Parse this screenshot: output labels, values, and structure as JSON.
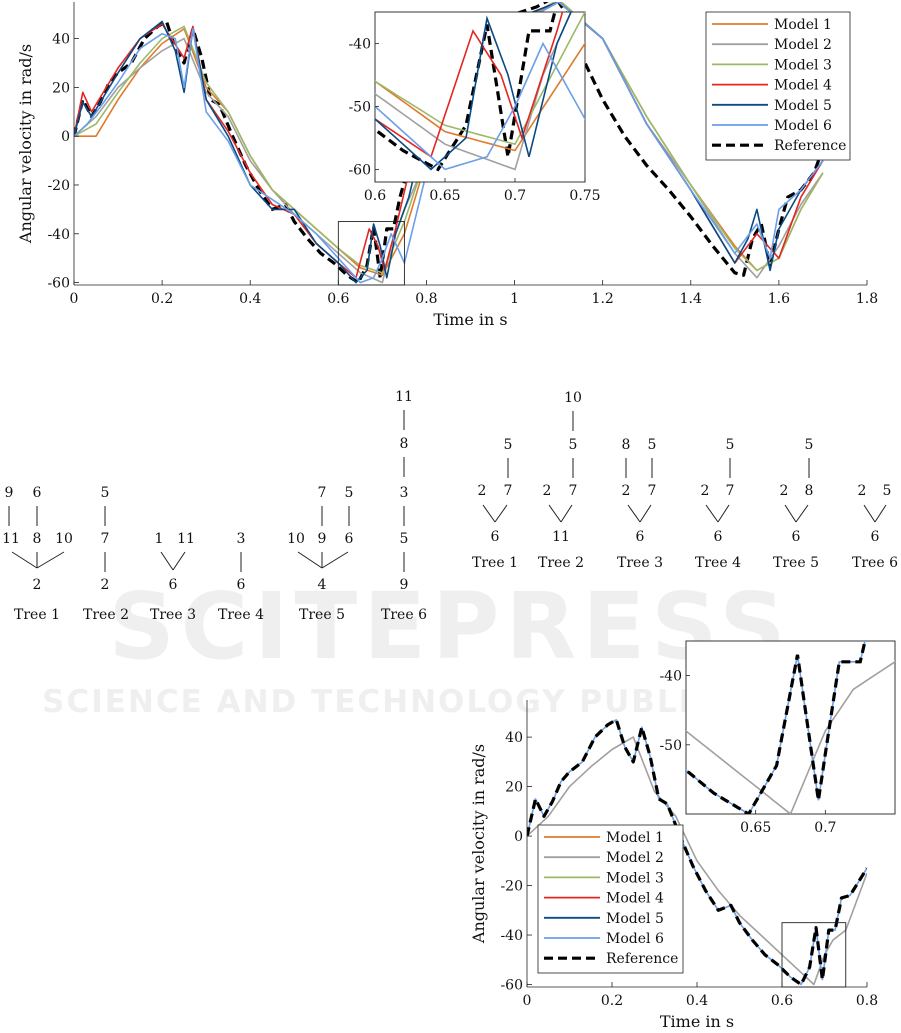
{
  "watermark": {
    "title": "SCITEPRESS",
    "subtitle": "SCIENCE AND TECHNOLOGY PUBLICATIONS"
  },
  "colors": {
    "Model 1": "#e07b2c",
    "Model 2": "#a0a0a0",
    "Model 3": "#9cb96a",
    "Model 4": "#e52521",
    "Model 5": "#0a4a84",
    "Model 6": "#6b9fe8",
    "Reference": "#000000"
  },
  "chart_data": [
    {
      "id": "top",
      "type": "line",
      "xlabel": "Time in s",
      "ylabel": "Angular velocity in rad/s",
      "xlim": [
        0,
        1.8
      ],
      "ylim": [
        -61,
        55
      ],
      "xticks": [
        "0",
        "0.2",
        "0.4",
        "0.6",
        "0.8",
        "1",
        "1.2",
        "1.4",
        "1.6",
        "1.8"
      ],
      "yticks": [
        "-60",
        "-40",
        "-20",
        "0",
        "20",
        "40"
      ],
      "legend_position": "top-right",
      "legend": [
        "Model 1",
        "Model 2",
        "Model 3",
        "Model 4",
        "Model 5",
        "Model 6",
        "Reference"
      ],
      "inset": {
        "xlim": [
          0.6,
          0.75
        ],
        "ylim": [
          -62,
          -35
        ],
        "xticks": [
          "0.6",
          "0.65",
          "0.7",
          "0.75"
        ],
        "yticks": [
          "-60",
          "-50",
          "-40"
        ]
      },
      "series": [
        {
          "name": "Reference",
          "x": [
            0,
            0.02,
            0.04,
            0.06,
            0.08,
            0.1,
            0.13,
            0.16,
            0.19,
            0.21,
            0.23,
            0.25,
            0.27,
            0.29,
            0.31,
            0.33,
            0.36,
            0.39,
            0.42,
            0.45,
            0.48,
            0.5,
            0.53,
            0.56,
            0.59,
            0.62,
            0.645,
            0.665,
            0.68,
            0.695,
            0.71,
            0.725,
            0.74,
            0.76,
            0.8,
            0.85,
            0.9,
            0.95,
            1.0,
            1.05,
            1.08,
            1.1,
            1.13,
            1.16,
            1.2,
            1.25,
            1.3,
            1.35,
            1.4,
            1.45,
            1.5,
            1.52,
            1.54,
            1.56,
            1.58,
            1.6,
            1.62,
            1.65,
            1.68,
            1.7
          ],
          "y": [
            0,
            15,
            8,
            14,
            22,
            26,
            30,
            40,
            45,
            47,
            36,
            30,
            44,
            32,
            15,
            13,
            0,
            -12,
            -22,
            -30,
            -28,
            -35,
            -42,
            -48,
            -52,
            -57,
            -60,
            -53,
            -37,
            -58,
            -38,
            -38,
            -25,
            -12,
            5,
            20,
            33,
            45,
            50,
            53,
            56,
            55,
            47,
            30,
            15,
            0,
            -12,
            -22,
            -33,
            -45,
            -56,
            -57,
            -42,
            -36,
            -53,
            -38,
            -25,
            -22,
            -15,
            -5
          ]
        },
        {
          "name": "Model 1",
          "x": [
            0,
            0.05,
            0.1,
            0.15,
            0.2,
            0.25,
            0.3,
            0.35,
            0.4,
            0.45,
            0.5,
            0.55,
            0.6,
            0.65,
            0.7,
            0.75,
            0.8,
            0.9,
            1.0,
            1.1,
            1.2,
            1.3,
            1.4,
            1.5,
            1.55,
            1.6,
            1.65,
            1.7
          ],
          "y": [
            0,
            0,
            15,
            28,
            38,
            44,
            20,
            10,
            -8,
            -22,
            -30,
            -38,
            -46,
            -54,
            -57,
            -40,
            -10,
            20,
            45,
            56,
            40,
            8,
            -20,
            -45,
            -55,
            -50,
            -30,
            -15
          ]
        },
        {
          "name": "Model 2",
          "x": [
            0,
            0.05,
            0.1,
            0.15,
            0.2,
            0.25,
            0.3,
            0.35,
            0.4,
            0.45,
            0.5,
            0.55,
            0.6,
            0.65,
            0.7,
            0.72,
            0.75,
            0.8,
            0.9,
            1.0,
            1.1,
            1.2,
            1.3,
            1.4,
            1.5,
            1.55,
            1.6,
            1.65,
            1.7
          ],
          "y": [
            0,
            8,
            20,
            28,
            35,
            40,
            18,
            8,
            -10,
            -22,
            -32,
            -40,
            -48,
            -56,
            -60,
            -45,
            -30,
            -10,
            20,
            45,
            55,
            40,
            5,
            -20,
            -48,
            -58,
            -45,
            -28,
            -15
          ]
        },
        {
          "name": "Model 3",
          "x": [
            0,
            0.05,
            0.1,
            0.15,
            0.2,
            0.25,
            0.3,
            0.35,
            0.4,
            0.45,
            0.5,
            0.55,
            0.6,
            0.65,
            0.7,
            0.75,
            0.8,
            0.9,
            1.0,
            1.1,
            1.2,
            1.3,
            1.4,
            1.5,
            1.55,
            1.6,
            1.65,
            1.7
          ],
          "y": [
            0,
            5,
            18,
            30,
            40,
            45,
            22,
            10,
            -8,
            -22,
            -30,
            -38,
            -46,
            -53,
            -56,
            -35,
            -8,
            22,
            46,
            56,
            40,
            8,
            -20,
            -46,
            -55,
            -50,
            -30,
            -15
          ]
        },
        {
          "name": "Model 4",
          "x": [
            0,
            0.02,
            0.04,
            0.06,
            0.1,
            0.15,
            0.2,
            0.25,
            0.27,
            0.3,
            0.35,
            0.4,
            0.45,
            0.5,
            0.55,
            0.6,
            0.64,
            0.67,
            0.69,
            0.705,
            0.73,
            0.76,
            0.8,
            0.9,
            1.0,
            1.1,
            1.2,
            1.3,
            1.4,
            1.5,
            1.55,
            1.6,
            1.65,
            1.7
          ],
          "y": [
            0,
            18,
            10,
            16,
            28,
            40,
            46,
            32,
            45,
            15,
            2,
            -15,
            -28,
            -32,
            -44,
            -52,
            -58,
            -38,
            -45,
            -55,
            -38,
            -15,
            5,
            30,
            48,
            55,
            40,
            5,
            -22,
            -52,
            -40,
            -50,
            -25,
            -10
          ]
        },
        {
          "name": "Model 5",
          "x": [
            0,
            0.02,
            0.04,
            0.06,
            0.1,
            0.15,
            0.2,
            0.23,
            0.25,
            0.27,
            0.3,
            0.35,
            0.4,
            0.45,
            0.5,
            0.55,
            0.6,
            0.64,
            0.665,
            0.68,
            0.695,
            0.71,
            0.73,
            0.76,
            0.8,
            0.9,
            1.0,
            1.1,
            1.2,
            1.3,
            1.4,
            1.5,
            1.53,
            1.55,
            1.58,
            1.6,
            1.65,
            1.7
          ],
          "y": [
            0,
            14,
            8,
            14,
            26,
            40,
            47,
            35,
            18,
            44,
            15,
            0,
            -20,
            -30,
            -30,
            -44,
            -52,
            -60,
            -55,
            -36,
            -45,
            -58,
            -40,
            -25,
            5,
            30,
            48,
            55,
            40,
            5,
            -22,
            -52,
            -42,
            -30,
            -55,
            -38,
            -22,
            -10
          ]
        },
        {
          "name": "Model 6",
          "x": [
            0,
            0.03,
            0.06,
            0.1,
            0.15,
            0.2,
            0.23,
            0.25,
            0.27,
            0.3,
            0.35,
            0.4,
            0.45,
            0.5,
            0.55,
            0.6,
            0.65,
            0.68,
            0.7,
            0.72,
            0.75,
            0.8,
            0.9,
            1.0,
            1.1,
            1.2,
            1.3,
            1.4,
            1.5,
            1.55,
            1.58,
            1.6,
            1.65,
            1.7
          ],
          "y": [
            0,
            5,
            12,
            22,
            36,
            42,
            40,
            20,
            44,
            10,
            -2,
            -20,
            -26,
            -32,
            -40,
            -50,
            -60,
            -58,
            -50,
            -40,
            -52,
            -15,
            20,
            45,
            55,
            40,
            5,
            -22,
            -48,
            -36,
            -50,
            -30,
            -22,
            -10
          ]
        }
      ]
    },
    {
      "id": "bottom",
      "type": "line",
      "xlabel": "Time in s",
      "ylabel": "Angular velocity in rad/s",
      "xlim": [
        0,
        0.8
      ],
      "ylim": [
        -61,
        55
      ],
      "xticks": [
        "0",
        "0.2",
        "0.4",
        "0.6",
        "0.8"
      ],
      "yticks": [
        "-60",
        "-40",
        "-20",
        "0",
        "20",
        "40"
      ],
      "legend_position": "bottom-left",
      "legend": [
        "Model 1",
        "Model 2",
        "Model 3",
        "Model 4",
        "Model 5",
        "Model 6",
        "Reference"
      ],
      "inset": {
        "xlim": [
          0.6,
          0.75
        ],
        "ylim": [
          -60,
          -35
        ],
        "xticks": [
          "0.65",
          "0.7"
        ],
        "yticks": [
          "-50",
          "-40"
        ]
      },
      "series": [
        {
          "name": "Model 2",
          "x": [
            0,
            0.05,
            0.1,
            0.15,
            0.2,
            0.25,
            0.3,
            0.35,
            0.4,
            0.45,
            0.5,
            0.55,
            0.6,
            0.65,
            0.675,
            0.7,
            0.72,
            0.75,
            0.8
          ],
          "y": [
            0,
            8,
            20,
            28,
            35,
            40,
            18,
            8,
            -10,
            -22,
            -32,
            -40,
            -48,
            -56,
            -60,
            -48,
            -42,
            -38,
            -15
          ]
        },
        {
          "name": "Model 6",
          "x": [
            0,
            0.02,
            0.04,
            0.06,
            0.08,
            0.1,
            0.13,
            0.16,
            0.19,
            0.21,
            0.23,
            0.25,
            0.27,
            0.29,
            0.31,
            0.33,
            0.36,
            0.39,
            0.42,
            0.45,
            0.48,
            0.5,
            0.53,
            0.56,
            0.59,
            0.62,
            0.645,
            0.665,
            0.68,
            0.695,
            0.71,
            0.725,
            0.74,
            0.76,
            0.8
          ],
          "y": [
            0,
            15,
            8,
            14,
            22,
            26,
            30,
            40,
            45,
            47,
            36,
            30,
            44,
            32,
            15,
            13,
            0,
            -12,
            -22,
            -30,
            -28,
            -35,
            -42,
            -48,
            -52,
            -57,
            -60,
            -53,
            -37,
            -58,
            -38,
            -38,
            -25,
            -24,
            -13
          ]
        },
        {
          "name": "Reference",
          "x": [
            0,
            0.02,
            0.04,
            0.06,
            0.08,
            0.1,
            0.13,
            0.16,
            0.19,
            0.21,
            0.23,
            0.25,
            0.27,
            0.29,
            0.31,
            0.33,
            0.36,
            0.39,
            0.42,
            0.45,
            0.48,
            0.5,
            0.53,
            0.56,
            0.59,
            0.62,
            0.645,
            0.665,
            0.68,
            0.695,
            0.71,
            0.725,
            0.74,
            0.76,
            0.8
          ],
          "y": [
            0,
            15,
            8,
            14,
            22,
            26,
            30,
            40,
            45,
            47,
            36,
            30,
            44,
            32,
            15,
            13,
            0,
            -12,
            -22,
            -30,
            -28,
            -35,
            -42,
            -48,
            -52,
            -57,
            -60,
            -53,
            -37,
            -58,
            -38,
            -38,
            -25,
            -24,
            -13
          ]
        }
      ]
    }
  ],
  "trees": {
    "left": {
      "labels": [
        "Tree 1",
        "Tree 2",
        "Tree 3",
        "Tree 4",
        "Tree 5",
        "Tree 6"
      ],
      "nodes": [
        "9",
        "6",
        "11",
        "8",
        "10",
        "2",
        "5",
        "7",
        "2",
        "1",
        "11",
        "6",
        "3",
        "6",
        "7",
        "5",
        "10",
        "9",
        "6",
        "4",
        "11",
        "8",
        "3",
        "5",
        "9"
      ]
    },
    "right": {
      "labels": [
        "Tree 1",
        "Tree 2",
        "Tree 3",
        "Tree 4",
        "Tree 5",
        "Tree 6"
      ],
      "nodes": [
        "5",
        "2",
        "7",
        "6",
        "10",
        "5",
        "2",
        "7",
        "11",
        "8",
        "5",
        "2",
        "7",
        "6",
        "5",
        "2",
        "7",
        "6",
        "5",
        "2",
        "8",
        "6",
        "2",
        "5",
        "6"
      ]
    }
  }
}
